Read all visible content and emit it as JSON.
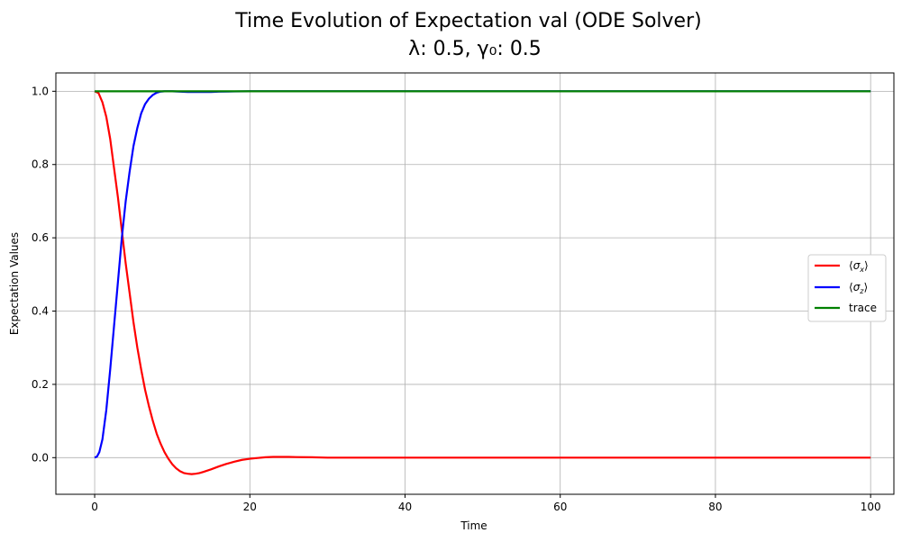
{
  "chart_data": {
    "type": "line",
    "title": "Time Evolution of Expectation val (ODE Solver)",
    "subtitle": "λ: 0.5, γ₀: 0.5",
    "xlabel": "Time",
    "ylabel": "Expectation Values",
    "xlim": [
      -5,
      103
    ],
    "ylim": [
      -0.1,
      1.05
    ],
    "x_ticks": [
      0,
      20,
      40,
      60,
      80,
      100
    ],
    "y_ticks": [
      0.0,
      0.2,
      0.4,
      0.6,
      0.8,
      1.0
    ],
    "x_tick_labels": [
      "0",
      "20",
      "40",
      "60",
      "80",
      "100"
    ],
    "y_tick_labels": [
      "0.0",
      "0.2",
      "0.4",
      "0.6",
      "0.8",
      "1.0"
    ],
    "grid": true,
    "legend_position": "center-right",
    "series": [
      {
        "name": "⟨σx⟩",
        "color": "#ff0000",
        "points": [
          [
            0,
            1.0
          ],
          [
            0.5,
            0.995
          ],
          [
            1,
            0.97
          ],
          [
            1.5,
            0.93
          ],
          [
            2,
            0.87
          ],
          [
            2.5,
            0.79
          ],
          [
            3,
            0.71
          ],
          [
            3.5,
            0.62
          ],
          [
            4,
            0.53
          ],
          [
            4.5,
            0.45
          ],
          [
            5,
            0.37
          ],
          [
            5.5,
            0.3
          ],
          [
            6,
            0.24
          ],
          [
            6.5,
            0.185
          ],
          [
            7,
            0.14
          ],
          [
            7.5,
            0.1
          ],
          [
            8,
            0.065
          ],
          [
            8.5,
            0.038
          ],
          [
            9,
            0.015
          ],
          [
            9.5,
            -0.003
          ],
          [
            10,
            -0.018
          ],
          [
            10.5,
            -0.029
          ],
          [
            11,
            -0.037
          ],
          [
            11.5,
            -0.042
          ],
          [
            12,
            -0.044
          ],
          [
            12.5,
            -0.045
          ],
          [
            13,
            -0.044
          ],
          [
            13.5,
            -0.042
          ],
          [
            14,
            -0.039
          ],
          [
            15,
            -0.032
          ],
          [
            16,
            -0.024
          ],
          [
            17,
            -0.017
          ],
          [
            18,
            -0.011
          ],
          [
            19,
            -0.006
          ],
          [
            20,
            -0.003
          ],
          [
            21,
            -0.001
          ],
          [
            22,
            0.001
          ],
          [
            23,
            0.002
          ],
          [
            24,
            0.002
          ],
          [
            25,
            0.002
          ],
          [
            26,
            0.0015
          ],
          [
            28,
            0.001
          ],
          [
            30,
            0.0
          ],
          [
            35,
            0.0
          ],
          [
            40,
            0.0
          ],
          [
            50,
            0.0
          ],
          [
            60,
            0.0
          ],
          [
            70,
            0.0
          ],
          [
            80,
            0.0
          ],
          [
            90,
            0.0
          ],
          [
            100,
            0.0
          ]
        ]
      },
      {
        "name": "⟨σz⟩",
        "color": "#0000ff",
        "points": [
          [
            0,
            0.0
          ],
          [
            0.3,
            0.003
          ],
          [
            0.6,
            0.015
          ],
          [
            1,
            0.05
          ],
          [
            1.5,
            0.13
          ],
          [
            2,
            0.24
          ],
          [
            2.5,
            0.36
          ],
          [
            3,
            0.48
          ],
          [
            3.5,
            0.6
          ],
          [
            4,
            0.7
          ],
          [
            4.5,
            0.78
          ],
          [
            5,
            0.85
          ],
          [
            5.5,
            0.9
          ],
          [
            6,
            0.94
          ],
          [
            6.5,
            0.965
          ],
          [
            7,
            0.98
          ],
          [
            7.5,
            0.99
          ],
          [
            8,
            0.996
          ],
          [
            8.5,
            0.999
          ],
          [
            9,
            1.0
          ],
          [
            10,
            1.0
          ],
          [
            11,
            0.999
          ],
          [
            12,
            0.998
          ],
          [
            13,
            0.998
          ],
          [
            14,
            0.998
          ],
          [
            15,
            0.998
          ],
          [
            16,
            0.999
          ],
          [
            18,
            0.9995
          ],
          [
            20,
            1.0
          ],
          [
            30,
            1.0
          ],
          [
            40,
            1.0
          ],
          [
            50,
            1.0
          ],
          [
            60,
            1.0
          ],
          [
            70,
            1.0
          ],
          [
            80,
            1.0
          ],
          [
            90,
            1.0
          ],
          [
            100,
            1.0
          ]
        ]
      },
      {
        "name": "trace",
        "color": "#008000",
        "points": [
          [
            0,
            1.0
          ],
          [
            100,
            1.0
          ]
        ]
      }
    ]
  }
}
